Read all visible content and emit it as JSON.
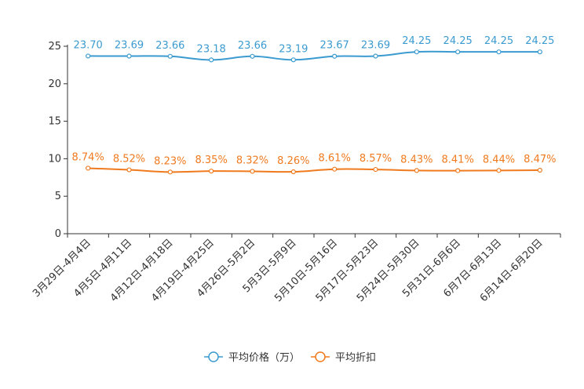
{
  "chart_data": {
    "type": "line",
    "title": "",
    "xlabel": "",
    "ylabel": "",
    "ylim": [
      0,
      25
    ],
    "yticks": [
      0,
      5,
      10,
      15,
      20,
      25
    ],
    "grid": false,
    "legend_position": "bottom-center",
    "categories": [
      "3月29日-4月4日",
      "4月5日-4月11日",
      "4月12日-4月18日",
      "4月19日-4月25日",
      "4月26日-5月2日",
      "5月3日-5月9日",
      "5月10日-5月16日",
      "5月17日-5月23日",
      "5月24日-5月30日",
      "5月31日-6月6日",
      "6月7日-6月13日",
      "6月14日-6月20日"
    ],
    "series": [
      {
        "name": "平均价格（万）",
        "color": "#3b9bd0",
        "values": [
          23.7,
          23.69,
          23.66,
          23.18,
          23.66,
          23.19,
          23.67,
          23.69,
          24.25,
          24.25,
          24.25,
          24.25
        ],
        "labels": [
          "23.70",
          "23.69",
          "23.66",
          "23.18",
          "23.66",
          "23.19",
          "23.67",
          "23.69",
          "24.25",
          "24.25",
          "24.25",
          "24.25"
        ]
      },
      {
        "name": "平均折扣",
        "color": "#f07a1e",
        "values": [
          8.74,
          8.52,
          8.23,
          8.35,
          8.32,
          8.26,
          8.61,
          8.57,
          8.43,
          8.41,
          8.44,
          8.47
        ],
        "labels": [
          "8.74%",
          "8.52%",
          "8.23%",
          "8.35%",
          "8.32%",
          "8.26%",
          "8.61%",
          "8.57%",
          "8.43%",
          "8.41%",
          "8.44%",
          "8.47%"
        ]
      }
    ]
  }
}
